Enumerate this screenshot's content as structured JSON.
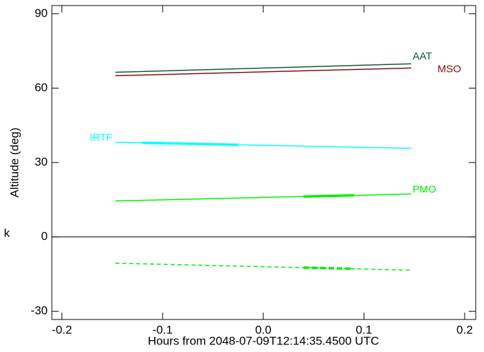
{
  "chart_data": {
    "type": "line",
    "xlabel": "Hours from 2048-07-09T12:14:35.4500 UTC",
    "ylabel": "Altitude (deg)",
    "annotation": "k",
    "xlim": [
      -0.21,
      0.211
    ],
    "ylim": [
      -33.3,
      93.3
    ],
    "xticks": [
      -0.2,
      -0.1,
      {
        "value": 0,
        "label": "0.0"
      },
      0.1,
      0.2
    ],
    "yticks": [
      -30,
      0,
      30,
      60,
      90
    ],
    "hline": 0,
    "series": [
      {
        "name": "AAT",
        "color": "#0b5a38",
        "x": [
          -0.147,
          0.147
        ],
        "values": [
          66.4,
          69.8
        ]
      },
      {
        "name": "MSO",
        "color": "#8b0a0a",
        "x": [
          -0.147,
          0.147
        ],
        "values": [
          65.0,
          68.1
        ]
      },
      {
        "name": "IRTF",
        "color": "#00ffff",
        "x": [
          -0.147,
          0.147
        ],
        "values": [
          38.2,
          35.7
        ],
        "highlight": [
          -0.12,
          -0.025
        ]
      },
      {
        "name": "PMO",
        "color": "#00ee00",
        "x": [
          -0.147,
          0.147
        ],
        "values": [
          14.5,
          17.3
        ],
        "highlight": [
          0.04,
          0.09
        ]
      },
      {
        "color": "#00ee00",
        "x": [
          -0.147,
          0.147
        ],
        "values": [
          -10.6,
          -13.4
        ],
        "dashed": true,
        "highlight": [
          0.04,
          0.09
        ]
      }
    ]
  }
}
